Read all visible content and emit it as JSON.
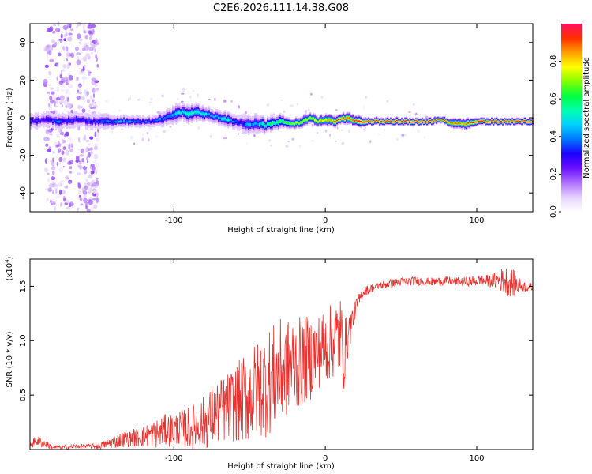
{
  "title": "C2E6.2026.111.14.38.G08",
  "chart_data": [
    {
      "type": "heatmap",
      "name": "spectrogram",
      "xlabel": "Height of straight line (km)",
      "ylabel": "Frequency (Hz)",
      "xlim": [
        -195,
        137
      ],
      "ylim": [
        -50,
        50
      ],
      "xticks": [
        -100,
        0,
        100
      ],
      "xtick_labels": [
        "-100",
        "0",
        "100"
      ],
      "yticks": [
        40,
        20,
        0,
        -20,
        -40
      ],
      "ytick_labels": [
        "40",
        "20",
        "0",
        "-20",
        "-40"
      ],
      "ridge": {
        "x": [
          -195,
          -185,
          -175,
          -165,
          -155,
          -145,
          -135,
          -125,
          -115,
          -105,
          -100,
          -95,
          -90,
          -85,
          -80,
          -75,
          -70,
          -65,
          -60,
          -55,
          -50,
          -45,
          -40,
          -35,
          -30,
          -25,
          -20,
          -15,
          -10,
          -5,
          0,
          5,
          10,
          15,
          20,
          30,
          40,
          50,
          60,
          70,
          75,
          80,
          85,
          90,
          95,
          100,
          105,
          110,
          115,
          120,
          125,
          130,
          137
        ],
        "y": [
          -2,
          -1,
          -2,
          -1,
          -2,
          -2,
          -2,
          -2,
          -2,
          0,
          2,
          3,
          2,
          3,
          2,
          1,
          0,
          -1,
          -2,
          -3,
          -4,
          -3,
          -4,
          -3,
          -2,
          -3,
          -3,
          -2,
          0,
          -2,
          -1,
          -2,
          -1,
          0,
          -2,
          -2,
          -2,
          -2,
          -2,
          -2,
          -1,
          -2,
          -3,
          -3,
          -3,
          -2,
          -2,
          -2,
          -2,
          -2,
          -2,
          -2,
          -2
        ],
        "amplitude": [
          0.3,
          0.3,
          0.35,
          0.3,
          0.3,
          0.35,
          0.4,
          0.4,
          0.35,
          0.4,
          0.45,
          0.5,
          0.5,
          0.5,
          0.5,
          0.45,
          0.45,
          0.5,
          0.4,
          0.35,
          0.4,
          0.45,
          0.55,
          0.6,
          0.6,
          0.65,
          0.7,
          0.7,
          0.75,
          0.8,
          0.8,
          0.85,
          0.9,
          0.9,
          0.95,
          0.95,
          0.95,
          0.95,
          0.95,
          0.95,
          0.9,
          0.9,
          0.85,
          0.85,
          0.9,
          0.95,
          0.95,
          0.95,
          0.95,
          0.95,
          0.95,
          0.95,
          0.95
        ],
        "halfwidth_hz": [
          4,
          4,
          4,
          4,
          4,
          4,
          3,
          3,
          3,
          4,
          5,
          5,
          5,
          5,
          4,
          4,
          4,
          4,
          4,
          5,
          5,
          5,
          4,
          4,
          4,
          3,
          3,
          3,
          3,
          3,
          3,
          3,
          3,
          3,
          3,
          2,
          2,
          2,
          2,
          2,
          2,
          2,
          3,
          3,
          3,
          2,
          2,
          2,
          2,
          2,
          2,
          2,
          2
        ]
      },
      "noise_columns_km": [
        [
          -185,
          -167
        ],
        [
          -164,
          -150
        ]
      ]
    },
    {
      "type": "colorbar",
      "name": "colorbar",
      "label": "Normalized spectral amplitude",
      "range": [
        0,
        1
      ],
      "ticks": [
        0.0,
        0.2,
        0.4,
        0.6,
        0.8
      ],
      "tick_labels": [
        "0.0",
        "0.2",
        "0.4",
        "0.6",
        "0.8"
      ],
      "colors": [
        "#ffffff",
        "#e6d2ff",
        "#b070ff",
        "#6a10ff",
        "#1f00ff",
        "#0077ff",
        "#00d0ff",
        "#00ffb0",
        "#00ff40",
        "#80ff00",
        "#ffff00",
        "#ffa000",
        "#ff3000",
        "#ff1060"
      ]
    },
    {
      "type": "line",
      "name": "snr",
      "xlabel": "Height of straight line (km)",
      "ylabel": "SNR (10 * v/v)",
      "scale_label": "(x10",
      "scale_exp": "4",
      "scale_suffix": ")",
      "xlim": [
        -195,
        137
      ],
      "ylim": [
        0,
        1.75
      ],
      "xticks": [
        -100,
        0,
        100
      ],
      "xtick_labels": [
        "-100",
        "0",
        "100"
      ],
      "yticks": [
        0.5,
        1.0,
        1.5
      ],
      "ytick_labels": [
        "0.5",
        "1.0",
        "1.5"
      ],
      "color": "#e8322e",
      "series": [
        {
          "name": "SNR",
          "x": [
            -195,
            -190,
            -185,
            -180,
            -175,
            -170,
            -165,
            -160,
            -155,
            -150,
            -145,
            -140,
            -135,
            -130,
            -125,
            -120,
            -115,
            -110,
            -105,
            -100,
            -95,
            -90,
            -85,
            -80,
            -75,
            -70,
            -65,
            -60,
            -55,
            -50,
            -45,
            -40,
            -35,
            -30,
            -25,
            -20,
            -15,
            -10,
            -5,
            0,
            5,
            10,
            12,
            15,
            20,
            25,
            30,
            35,
            40,
            50,
            60,
            70,
            80,
            90,
            100,
            110,
            115,
            120,
            125,
            130,
            137
          ],
          "mean": [
            0.05,
            0.08,
            0.05,
            0.02,
            0.02,
            0.02,
            0.03,
            0.03,
            0.03,
            0.03,
            0.05,
            0.07,
            0.09,
            0.1,
            0.11,
            0.12,
            0.14,
            0.15,
            0.18,
            0.18,
            0.19,
            0.2,
            0.22,
            0.25,
            0.3,
            0.35,
            0.38,
            0.42,
            0.45,
            0.5,
            0.55,
            0.6,
            0.65,
            0.7,
            0.75,
            0.8,
            0.8,
            0.85,
            0.9,
            0.95,
            1.0,
            1.05,
            0.85,
            1.05,
            1.3,
            1.45,
            1.48,
            1.5,
            1.52,
            1.54,
            1.55,
            1.54,
            1.55,
            1.54,
            1.55,
            1.55,
            1.56,
            1.55,
            1.52,
            1.5,
            1.49
          ],
          "spread": [
            0.04,
            0.05,
            0.04,
            0.02,
            0.02,
            0.02,
            0.02,
            0.02,
            0.02,
            0.03,
            0.04,
            0.06,
            0.07,
            0.08,
            0.09,
            0.1,
            0.12,
            0.14,
            0.15,
            0.16,
            0.17,
            0.2,
            0.22,
            0.25,
            0.28,
            0.3,
            0.32,
            0.35,
            0.4,
            0.45,
            0.45,
            0.5,
            0.5,
            0.5,
            0.45,
            0.45,
            0.4,
            0.4,
            0.35,
            0.35,
            0.35,
            0.4,
            0.35,
            0.2,
            0.08,
            0.05,
            0.04,
            0.04,
            0.04,
            0.04,
            0.04,
            0.04,
            0.04,
            0.04,
            0.05,
            0.06,
            0.1,
            0.14,
            0.12,
            0.05,
            0.04
          ]
        }
      ]
    }
  ]
}
